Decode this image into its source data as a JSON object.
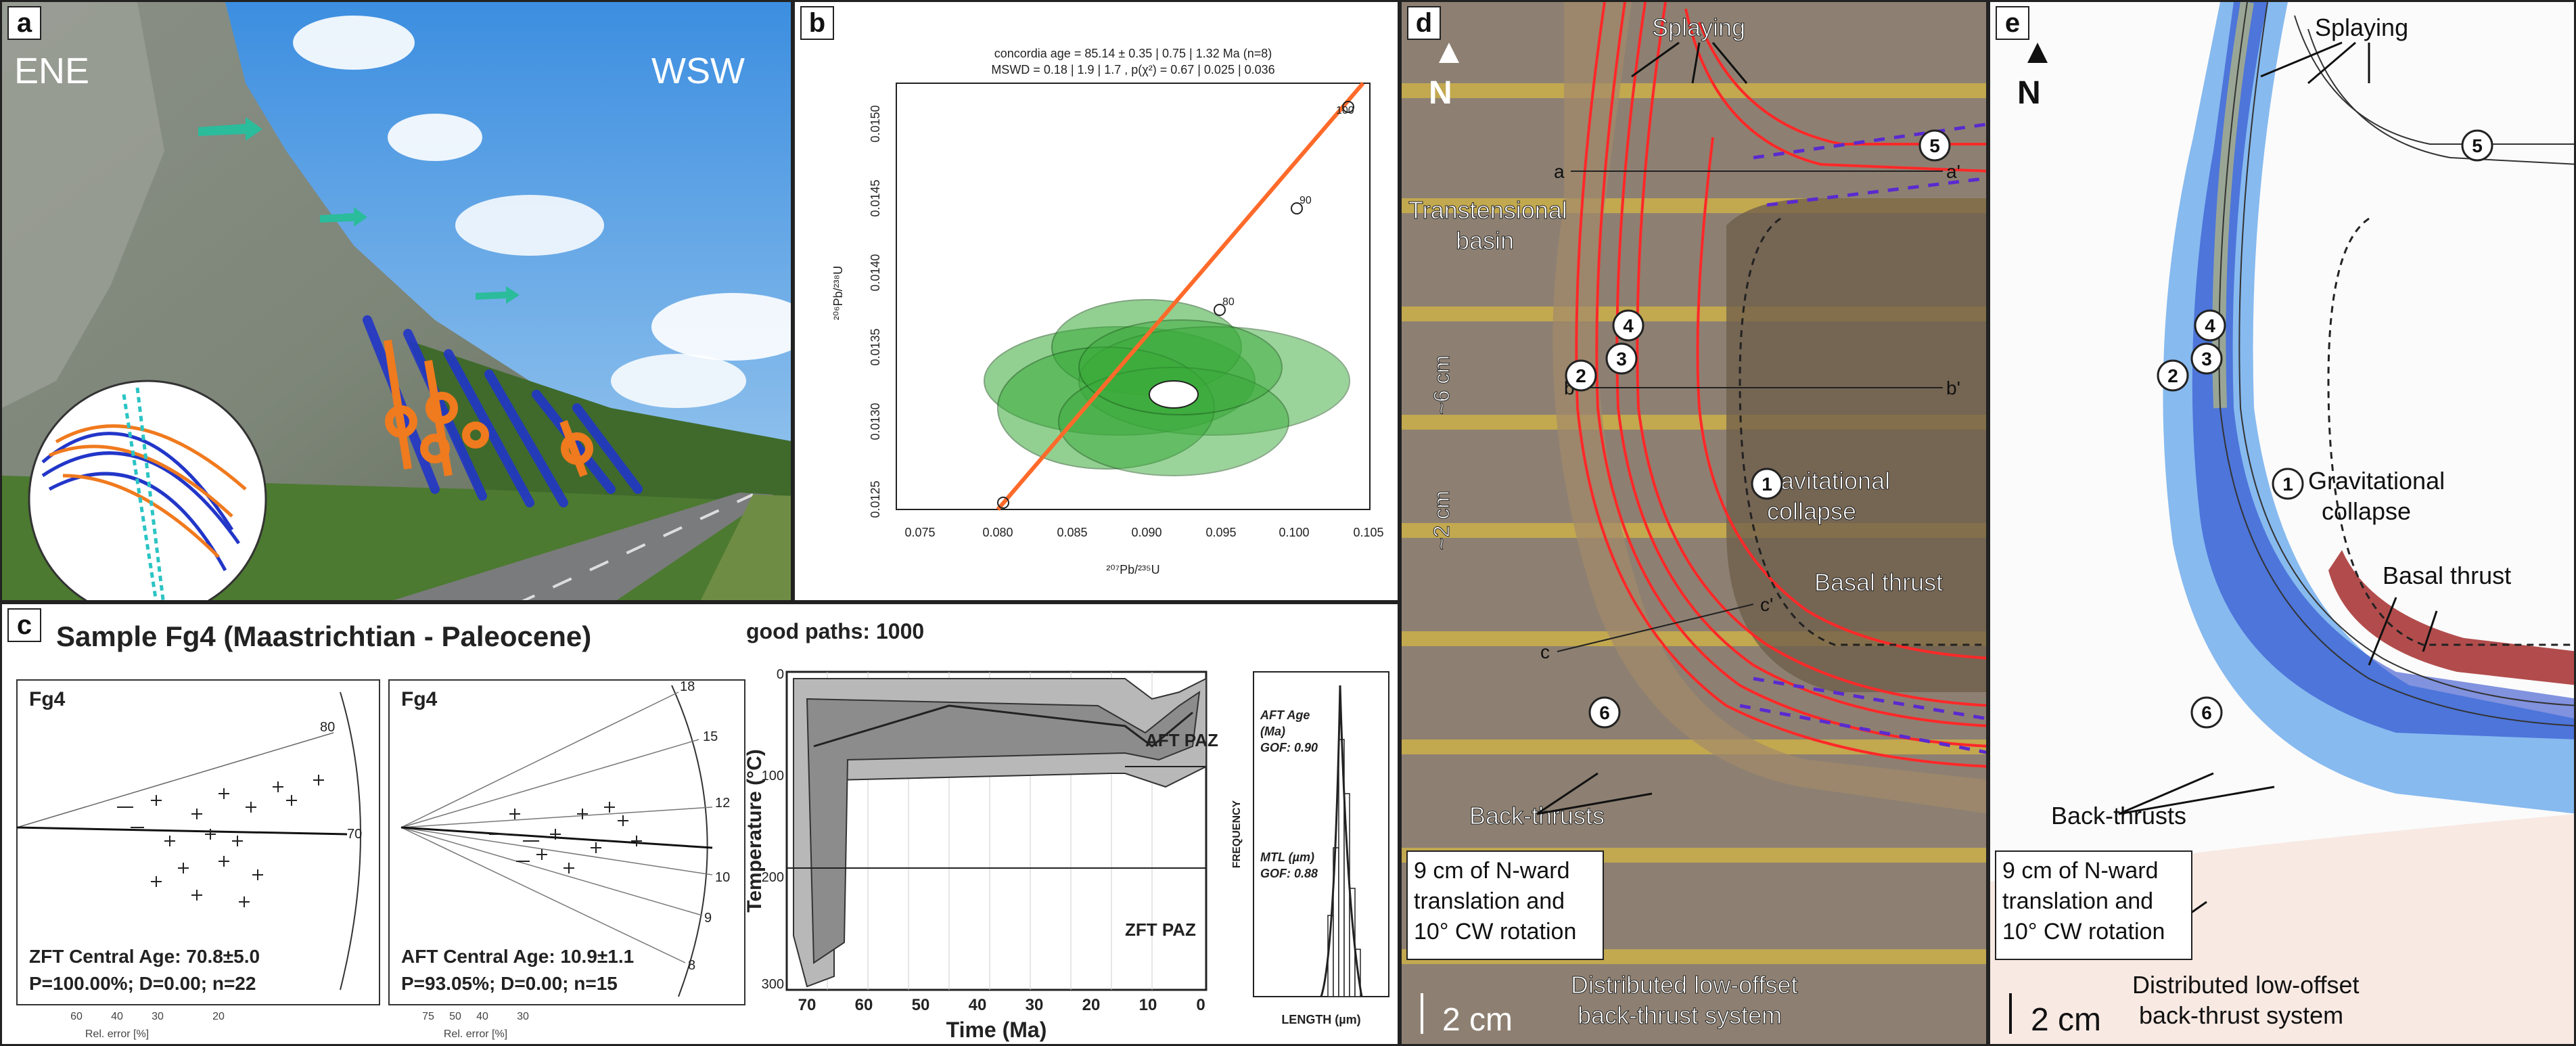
{
  "colors": {
    "fault_blue": "#2236c8",
    "fault_orange": "#f07a1e",
    "fault_red": "#ff2828",
    "ellipse_green": "#3aab3a",
    "concordia_orange": "#ff6a2a",
    "wedge_teal": "#2bc4c4"
  },
  "panel_a": {
    "label": "a",
    "left_dir": "ENE",
    "right_dir": "WSW"
  },
  "panel_b": {
    "label": "b",
    "title_line1": "concordia age = 85.14 ± 0.35 | 0.75 | 1.32 Ma (n=8)",
    "title_line2": "MSWD = 0.18 | 1.9 | 1.7 , p(χ²) = 0.67 | 0.025 | 0.036",
    "xlabel": "²⁰⁷Pb/²³⁵U",
    "ylabel": "²⁰⁶Pb/²³⁸U",
    "concordia_ages": [
      "80",
      "90",
      "100"
    ]
  },
  "panel_c": {
    "label": "c",
    "title": "Sample Fg4 (Maastrichtian - Paleocene)",
    "radial1": {
      "sample": "Fg4",
      "age": "ZFT Central Age: 70.8±5.0",
      "stats": "P=100.00%; D=0.00; n=22",
      "xaxis": "Rel. error [%]",
      "arc_labels": [
        "80",
        "70"
      ],
      "x_ticks": [
        "60",
        "40",
        "30",
        "20"
      ]
    },
    "radial2": {
      "sample": "Fg4",
      "age": "AFT Central Age: 10.9±1.1",
      "stats": "P=93.05%; D=0.00; n=15",
      "xaxis": "Rel. error [%]",
      "arc_labels": [
        "18",
        "15",
        "12",
        "10",
        "9",
        "8"
      ],
      "x_ticks": [
        "75",
        "50",
        "40",
        "30"
      ]
    },
    "tt": {
      "heading": "good paths: 1000",
      "xlabel": "Time (Ma)",
      "ylabel": "Temperature (°C)",
      "aft_paz": "AFT PAZ",
      "zft_paz": "ZFT PAZ",
      "x_ticks": [
        "70",
        "60",
        "50",
        "40",
        "30",
        "20",
        "10",
        "0"
      ],
      "y_ticks": [
        "0",
        "100",
        "200",
        "300"
      ]
    },
    "hist": {
      "age_title": "AFT Age",
      "age_unit": "(Ma)",
      "age_gof": "GOF: 0.90",
      "mtl_title": "MTL (µm)",
      "mtl_gof": "GOF: 0.88",
      "xlabel": "LENGTH (µm)",
      "ylabel": "FREQUENCY"
    }
  },
  "panel_d": {
    "label": "d",
    "north": "N",
    "splaying": "Splaying",
    "transtensional": "Transtensional",
    "basin": "basin",
    "grav1": "Gravitational",
    "grav2": "collapse",
    "basal": "Basal thrust",
    "back": "Back-thrusts",
    "dist1": "Distributed low-offset",
    "dist2": "back-thrust system",
    "trans1": "9 cm of N-ward",
    "trans2": "translation and",
    "trans3": "10° CW rotation",
    "scale": "2 cm",
    "six_cm": "~6 cm",
    "two_cm": "~2 cm",
    "sections": [
      "a",
      "a'",
      "b",
      "b'",
      "c",
      "c'"
    ],
    "circles": [
      "1",
      "2",
      "3",
      "4",
      "5",
      "6"
    ]
  },
  "panel_e": {
    "label": "e",
    "north": "N",
    "splaying": "Splaying",
    "grav1": "Gravitational",
    "grav2": "collapse",
    "basal": "Basal thrust",
    "back": "Back-thrusts",
    "dist1": "Distributed low-offset",
    "dist2": "back-thrust system",
    "trans1": "9 cm of N-ward",
    "trans2": "translation and",
    "trans3": "10° CW rotation",
    "scale": "2 cm",
    "circles": [
      "1",
      "2",
      "3",
      "4",
      "5",
      "6"
    ]
  }
}
